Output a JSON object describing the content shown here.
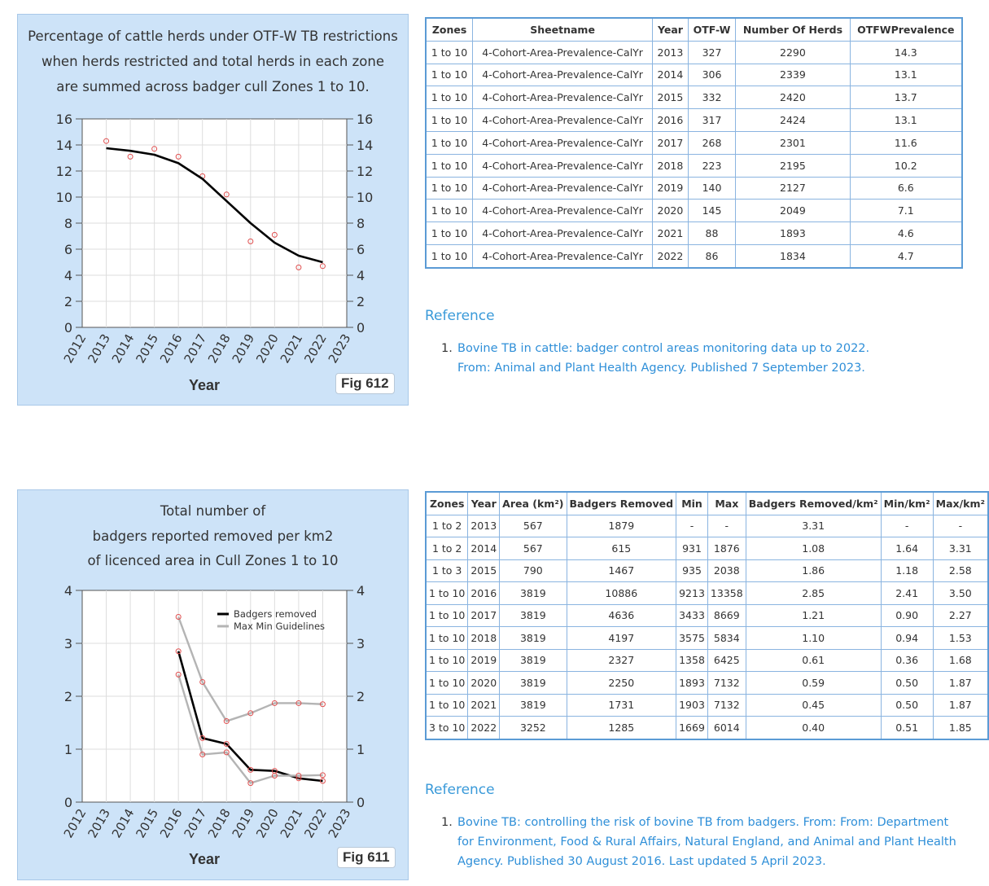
{
  "fig612": {
    "title_lines": [
      "Percentage of cattle herds under OTF-W TB restrictions",
      "when herds restricted and total herds in each zone",
      "are summed across badger cull Zones 1 to 10."
    ],
    "xlabel": "Year",
    "fig_label": "Fig 612"
  },
  "fig611": {
    "title_lines": [
      "Total number of",
      "badgers reported removed per km2",
      "of licenced area in Cull Zones 1 to 10"
    ],
    "xlabel": "Year",
    "fig_label": "Fig 611",
    "legend": [
      "Badgers removed",
      "Max Min Guidelines"
    ]
  },
  "chart_data": [
    {
      "type": "line",
      "title": "Percentage of cattle herds under OTF-W TB restrictions when herds restricted and total herds in each zone are summed across badger cull Zones 1 to 10.",
      "xlabel": "Year",
      "ylabel": "",
      "x_ticks": [
        "2012",
        "2013",
        "2014",
        "2015",
        "2016",
        "2017",
        "2018",
        "2019",
        "2020",
        "2021",
        "2022",
        "2023"
      ],
      "y_ticks": [
        "0",
        "2",
        "4",
        "6",
        "8",
        "10",
        "12",
        "14",
        "16"
      ],
      "xlim": [
        2012,
        2023
      ],
      "ylim": [
        0,
        16
      ],
      "grid": true,
      "series": [
        {
          "kind": "points",
          "color": "#e05050",
          "x": [
            2013,
            2014,
            2015,
            2016,
            2017,
            2018,
            2019,
            2020,
            2021,
            2022
          ],
          "y": [
            14.3,
            13.1,
            13.7,
            13.1,
            11.6,
            10.2,
            6.6,
            7.1,
            4.6,
            4.7
          ]
        },
        {
          "kind": "trend",
          "color": "#000000",
          "x": [
            2013,
            2014,
            2015,
            2016,
            2017,
            2018,
            2019,
            2020,
            2021,
            2022
          ],
          "y": [
            13.75,
            13.55,
            13.25,
            12.6,
            11.4,
            9.7,
            8.0,
            6.5,
            5.5,
            5.0
          ]
        }
      ]
    },
    {
      "type": "line",
      "title": "Total number of badgers reported removed per km2 of licenced area in Cull Zones 1 to 10",
      "xlabel": "Year",
      "ylabel": "",
      "x_ticks": [
        "2012",
        "2013",
        "2014",
        "2015",
        "2016",
        "2017",
        "2018",
        "2019",
        "2020",
        "2021",
        "2022",
        "2023"
      ],
      "y_ticks": [
        "0",
        "1",
        "2",
        "3",
        "4"
      ],
      "xlim": [
        2012,
        2023
      ],
      "ylim": [
        0,
        4
      ],
      "grid": true,
      "legend_position": "top-right",
      "series": [
        {
          "name": "Badgers removed",
          "color": "#000000",
          "x": [
            2016,
            2017,
            2018,
            2019,
            2020,
            2021,
            2022
          ],
          "y": [
            2.85,
            1.21,
            1.1,
            0.61,
            0.59,
            0.45,
            0.4
          ]
        },
        {
          "name": "Max Min Guidelines",
          "color": "#b4b4b4",
          "x": [
            2016,
            2017,
            2018,
            2019,
            2020,
            2021,
            2022
          ],
          "y": [
            3.5,
            2.27,
            1.53,
            1.68,
            1.87,
            1.87,
            1.85
          ]
        },
        {
          "name": "",
          "color": "#b4b4b4",
          "x": [
            2016,
            2017,
            2018,
            2019,
            2020,
            2021,
            2022
          ],
          "y": [
            2.41,
            0.9,
            0.94,
            0.36,
            0.5,
            0.5,
            0.51
          ]
        }
      ]
    }
  ],
  "table612": {
    "headers": [
      "Zones",
      "Sheetname",
      "Year",
      "OTF-W",
      "Number Of Herds",
      "OTFWPrevalence"
    ],
    "rows": [
      [
        "1 to 10",
        "4-Cohort-Area-Prevalence-CalYr",
        "2013",
        "327",
        "2290",
        "14.3"
      ],
      [
        "1 to 10",
        "4-Cohort-Area-Prevalence-CalYr",
        "2014",
        "306",
        "2339",
        "13.1"
      ],
      [
        "1 to 10",
        "4-Cohort-Area-Prevalence-CalYr",
        "2015",
        "332",
        "2420",
        "13.7"
      ],
      [
        "1 to 10",
        "4-Cohort-Area-Prevalence-CalYr",
        "2016",
        "317",
        "2424",
        "13.1"
      ],
      [
        "1 to 10",
        "4-Cohort-Area-Prevalence-CalYr",
        "2017",
        "268",
        "2301",
        "11.6"
      ],
      [
        "1 to 10",
        "4-Cohort-Area-Prevalence-CalYr",
        "2018",
        "223",
        "2195",
        "10.2"
      ],
      [
        "1 to 10",
        "4-Cohort-Area-Prevalence-CalYr",
        "2019",
        "140",
        "2127",
        "6.6"
      ],
      [
        "1 to 10",
        "4-Cohort-Area-Prevalence-CalYr",
        "2020",
        "145",
        "2049",
        "7.1"
      ],
      [
        "1 to 10",
        "4-Cohort-Area-Prevalence-CalYr",
        "2021",
        "88",
        "1893",
        "4.6"
      ],
      [
        "1 to 10",
        "4-Cohort-Area-Prevalence-CalYr",
        "2022",
        "86",
        "1834",
        "4.7"
      ]
    ]
  },
  "table611": {
    "headers": [
      "Zones",
      "Year",
      "Area (km²)",
      "Badgers Removed",
      "Min",
      "Max",
      "Badgers Removed/km²",
      "Min/km²",
      "Max/km²"
    ],
    "rows": [
      [
        "1 to 2",
        "2013",
        "567",
        "1879",
        "-",
        "-",
        "3.31",
        "-",
        "-"
      ],
      [
        "1 to 2",
        "2014",
        "567",
        "615",
        "931",
        "1876",
        "1.08",
        "1.64",
        "3.31"
      ],
      [
        "1 to 3",
        "2015",
        "790",
        "1467",
        "935",
        "2038",
        "1.86",
        "1.18",
        "2.58"
      ],
      [
        "1 to 10",
        "2016",
        "3819",
        "10886",
        "9213",
        "13358",
        "2.85",
        "2.41",
        "3.50"
      ],
      [
        "1 to 10",
        "2017",
        "3819",
        "4636",
        "3433",
        "8669",
        "1.21",
        "0.90",
        "2.27"
      ],
      [
        "1 to 10",
        "2018",
        "3819",
        "4197",
        "3575",
        "5834",
        "1.10",
        "0.94",
        "1.53"
      ],
      [
        "1 to 10",
        "2019",
        "3819",
        "2327",
        "1358",
        "6425",
        "0.61",
        "0.36",
        "1.68"
      ],
      [
        "1 to 10",
        "2020",
        "3819",
        "2250",
        "1893",
        "7132",
        "0.59",
        "0.50",
        "1.87"
      ],
      [
        "1 to 10",
        "2021",
        "3819",
        "1731",
        "1903",
        "7132",
        "0.45",
        "0.50",
        "1.87"
      ],
      [
        "3 to 10",
        "2022",
        "3252",
        "1285",
        "1669",
        "6014",
        "0.40",
        "0.51",
        "1.85"
      ]
    ]
  },
  "ref612": {
    "heading": "Reference",
    "number": "1.",
    "lines": [
      "Bovine TB in cattle: badger control areas monitoring data up to 2022.",
      "From: Animal and Plant Health Agency. Published 7 September 2023."
    ]
  },
  "ref611": {
    "heading": "Reference",
    "number": "1.",
    "lines": [
      "Bovine TB: controlling the risk of bovine TB from badgers. From: From: Department",
      "for Environment, Food & Rural Affairs, Natural England, and Animal and Plant Health",
      "Agency. Published 30 August 2016. Last updated 5 April 2023."
    ]
  }
}
